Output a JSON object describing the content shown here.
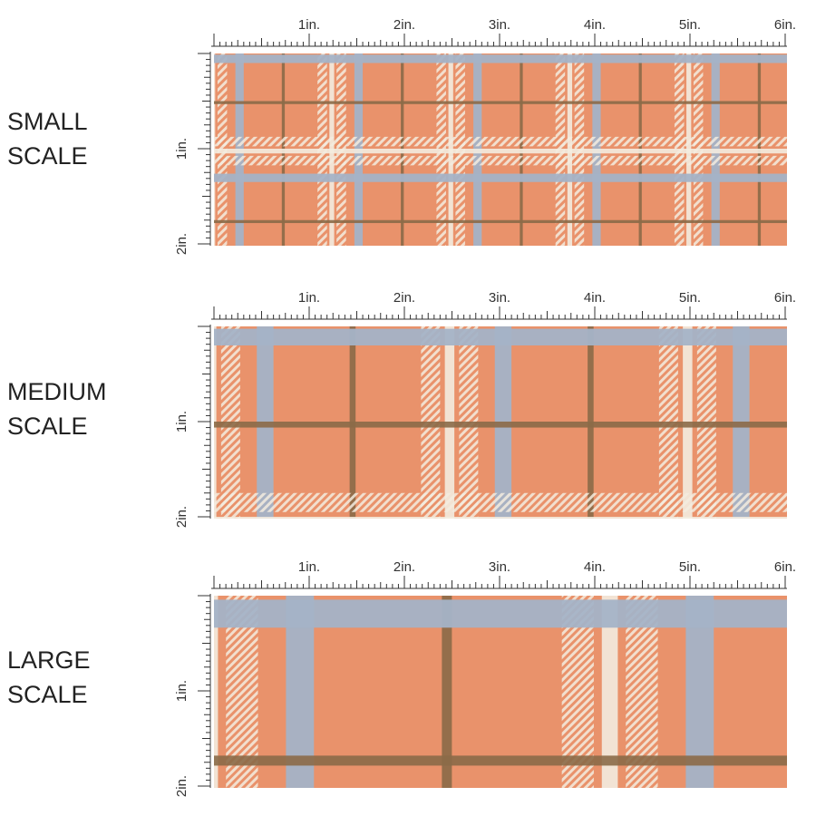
{
  "colors": {
    "background": "#e9926b",
    "background_dark": "#d98058",
    "cream": "#f3ece0",
    "blue": "#a4b3c7",
    "brown": "#8b6a48",
    "ruler": "#333333"
  },
  "ruler": {
    "horizontal_labels": [
      "1in.",
      "2in.",
      "3in.",
      "4in.",
      "5in.",
      "6in."
    ],
    "vertical_labels": [
      "1in.",
      "2in."
    ]
  },
  "panels": [
    {
      "id": "small",
      "label_line1": "SMALL",
      "label_line2": "SCALE",
      "pattern_repeat_in": 1.25
    },
    {
      "id": "medium",
      "label_line1": "MEDIUM",
      "label_line2": "SCALE",
      "pattern_repeat_in": 2.5
    },
    {
      "id": "large",
      "label_line1": "LARGE",
      "label_line2": "SCALE",
      "pattern_repeat_in": 4.2
    }
  ]
}
